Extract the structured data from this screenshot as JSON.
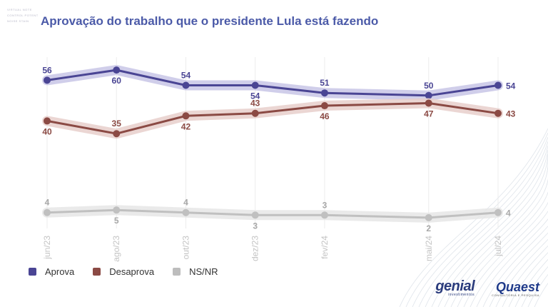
{
  "corner_text": [
    "VIRTUAL NOTE",
    "CONTROL POTENT",
    "NOISE STAIN"
  ],
  "title": "Aprovação do trabalho que o presidente Lula está fazendo",
  "legend": [
    {
      "label": "Aprova",
      "color": "#4a4594"
    },
    {
      "label": "Desaprova",
      "color": "#8b4a44"
    },
    {
      "label": "NS/NR",
      "color": "#bdbdbd"
    }
  ],
  "logos": {
    "genial_main": "genial",
    "genial_sub": "investimentos",
    "quaest_main": "Quaest",
    "quaest_sub": "CONSULTORIA E PESQUISA"
  },
  "chart_data": {
    "type": "line",
    "title": "Aprovação do trabalho que o presidente Lula está fazendo",
    "x": [
      "jun/23",
      "ago/23",
      "out/23",
      "dez/23",
      "fev/24",
      "mai/24",
      "jul/24"
    ],
    "x_months": [
      0,
      2,
      4,
      6,
      8,
      11,
      13
    ],
    "ylim": [
      0,
      62
    ],
    "grid": "vertical",
    "legend_position": "bottom-left",
    "series": [
      {
        "name": "Aprova",
        "color": "#4a4594",
        "band": "#c8c6e6",
        "values": [
          56,
          60,
          54,
          54,
          51,
          50,
          54
        ],
        "label_pos": [
          "above",
          "below",
          "above",
          "below",
          "above",
          "above",
          "right"
        ]
      },
      {
        "name": "Desaprova",
        "color": "#8b4a44",
        "band": "#e8cfcb",
        "values": [
          40,
          35,
          42,
          43,
          46,
          47,
          43
        ],
        "label_pos": [
          "below",
          "above",
          "below",
          "above",
          "below",
          "below",
          "right"
        ]
      },
      {
        "name": "NS/NR",
        "color": "#c0c0c0",
        "band": "#e6e6e6",
        "values": [
          4,
          5,
          4,
          3,
          3,
          2,
          4
        ],
        "label_pos": [
          "above",
          "below",
          "above",
          "below",
          "above",
          "below",
          "right"
        ]
      }
    ]
  }
}
